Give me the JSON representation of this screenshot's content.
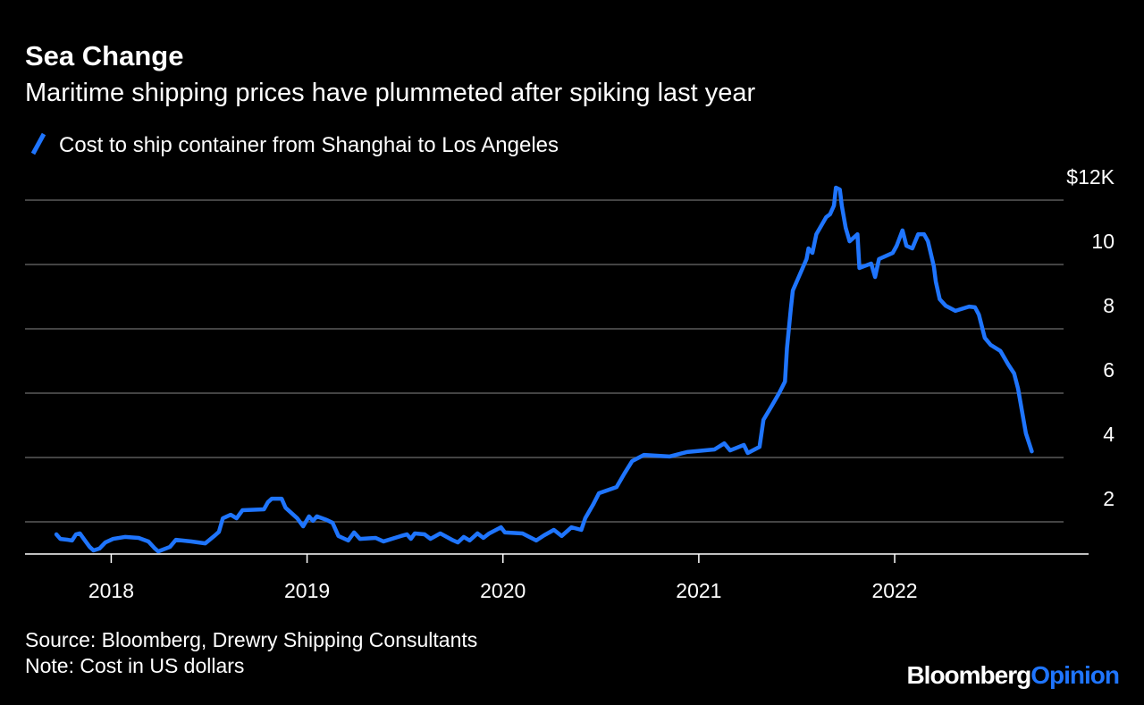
{
  "chart_data": {
    "type": "line",
    "title": "Sea Change",
    "subtitle": "Maritime shipping prices have plummeted after spiking last year",
    "source": "Source: Bloomberg, Drewry Shipping Consultants",
    "note": "Note: Cost in US dollars",
    "brand": "Bloomberg",
    "brand_suffix": "Opinion",
    "x": [
      2017.72,
      2017.74,
      2017.78,
      2017.8,
      2017.82,
      2017.84,
      2017.86,
      2017.89,
      2017.91,
      2017.94,
      2017.97,
      2018.01,
      2018.07,
      2018.14,
      2018.19,
      2018.22,
      2018.24,
      2018.3,
      2018.33,
      2018.41,
      2018.48,
      2018.53,
      2018.55,
      2018.57,
      2018.61,
      2018.64,
      2018.67,
      2018.78,
      2018.8,
      2018.82,
      2018.87,
      2018.89,
      2018.95,
      2018.98,
      2019.01,
      2019.03,
      2019.05,
      2019.1,
      2019.13,
      2019.16,
      2019.21,
      2019.24,
      2019.27,
      2019.35,
      2019.39,
      2019.48,
      2019.51,
      2019.53,
      2019.55,
      2019.6,
      2019.63,
      2019.68,
      2019.74,
      2019.77,
      2019.8,
      2019.83,
      2019.87,
      2019.9,
      2019.93,
      2019.99,
      2020.01,
      2020.1,
      2020.17,
      2020.21,
      2020.26,
      2020.3,
      2020.35,
      2020.4,
      2020.42,
      2020.46,
      2020.49,
      2020.58,
      2020.62,
      2020.66,
      2020.72,
      2020.85,
      2020.94,
      2021.08,
      2021.13,
      2021.16,
      2021.23,
      2021.25,
      2021.31,
      2021.33,
      2021.37,
      2021.41,
      2021.44,
      2021.45,
      2021.47,
      2021.48,
      2021.53,
      2021.55,
      2021.56,
      2021.58,
      2021.6,
      2021.65,
      2021.67,
      2021.69,
      2021.7,
      2021.72,
      2021.73,
      2021.75,
      2021.77,
      2021.81,
      2021.82,
      2021.88,
      2021.9,
      2021.92,
      2021.99,
      2022.01,
      2022.04,
      2022.06,
      2022.09,
      2022.12,
      2022.15,
      2022.17,
      2022.2,
      2022.21,
      2022.23,
      2022.26,
      2022.31,
      2022.38,
      2022.41,
      2022.43,
      2022.46,
      2022.49,
      2022.54,
      2022.58,
      2022.61,
      2022.63,
      2022.65,
      2022.67,
      2022.7
    ],
    "series": [
      {
        "name": "Cost to ship container from Shanghai to Los Angeles",
        "color": "#1f75fe",
        "values": [
          1.61,
          1.47,
          1.44,
          1.42,
          1.61,
          1.64,
          1.47,
          1.22,
          1.11,
          1.17,
          1.36,
          1.47,
          1.53,
          1.5,
          1.39,
          1.19,
          1.08,
          1.22,
          1.44,
          1.39,
          1.33,
          1.58,
          1.69,
          2.11,
          2.22,
          2.11,
          2.36,
          2.39,
          2.61,
          2.72,
          2.72,
          2.44,
          2.11,
          1.86,
          2.17,
          2.03,
          2.17,
          2.06,
          1.97,
          1.56,
          1.42,
          1.67,
          1.47,
          1.5,
          1.39,
          1.56,
          1.61,
          1.47,
          1.64,
          1.61,
          1.47,
          1.64,
          1.44,
          1.36,
          1.53,
          1.42,
          1.64,
          1.5,
          1.64,
          1.83,
          1.67,
          1.64,
          1.42,
          1.58,
          1.75,
          1.56,
          1.83,
          1.75,
          2.11,
          2.53,
          2.89,
          3.08,
          3.5,
          3.89,
          4.08,
          4.03,
          4.17,
          4.25,
          4.44,
          4.22,
          4.39,
          4.14,
          4.33,
          5.17,
          5.58,
          6.0,
          6.36,
          7.39,
          8.64,
          9.19,
          9.89,
          10.17,
          10.5,
          10.36,
          10.94,
          11.47,
          11.56,
          11.83,
          12.39,
          12.33,
          11.83,
          11.14,
          10.72,
          10.94,
          9.89,
          10.03,
          9.61,
          10.17,
          10.36,
          10.58,
          11.06,
          10.58,
          10.5,
          10.94,
          10.94,
          10.72,
          9.94,
          9.47,
          8.92,
          8.72,
          8.56,
          8.69,
          8.67,
          8.44,
          7.72,
          7.5,
          7.31,
          6.89,
          6.61,
          6.14,
          5.44,
          4.75,
          4.19
        ]
      }
    ],
    "xlim": [
      2017.56,
      2022.99
    ],
    "xticks": [
      2018,
      2019,
      2020,
      2021,
      2022
    ],
    "ylim": [
      1,
      12.6
    ],
    "yticks": [
      2,
      4,
      6,
      8,
      10,
      {
        "value": 12,
        "label": "$12K"
      }
    ],
    "grid": true
  }
}
